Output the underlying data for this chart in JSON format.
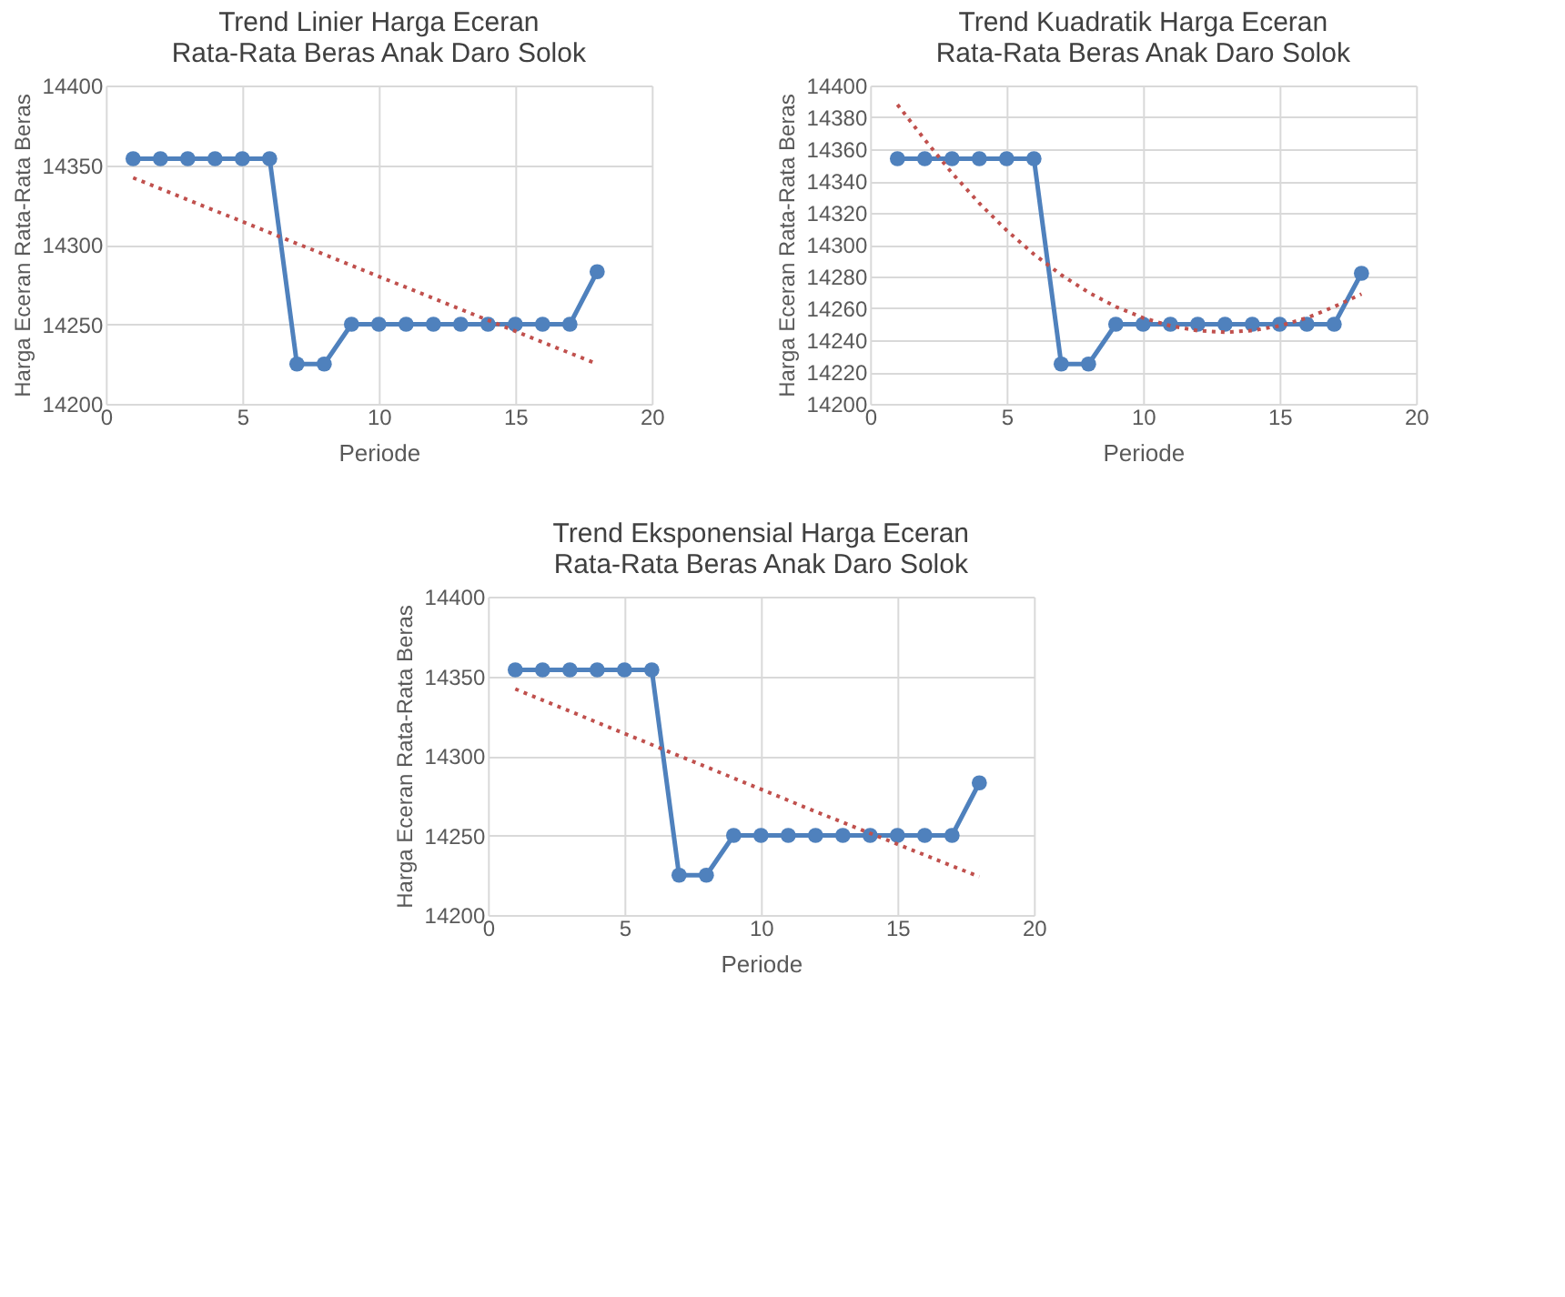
{
  "chart_data": [
    {
      "type": "line",
      "title": [
        "Trend Linier Harga Eceran",
        "Rata-Rata Beras Anak Daro Solok"
      ],
      "xlabel": "Periode",
      "ylabel": "Harga Eceran Rata-Rata Beras",
      "xlim": [
        0,
        20
      ],
      "xticks": [
        0,
        5,
        10,
        15,
        20
      ],
      "ylim": [
        14200,
        14400
      ],
      "yticks": [
        14200,
        14250,
        14300,
        14350,
        14400
      ],
      "grid": true,
      "series": [
        {
          "color": "#4f81bd",
          "marker": "circle",
          "line_style": "solid",
          "x": [
            1,
            2,
            3,
            4,
            5,
            6,
            7,
            8,
            9,
            10,
            11,
            12,
            13,
            14,
            15,
            16,
            17,
            18
          ],
          "values": [
            14354,
            14354,
            14354,
            14354,
            14354,
            14354,
            14225,
            14225,
            14250,
            14250,
            14250,
            14250,
            14250,
            14250,
            14250,
            14250,
            14250,
            14283
          ]
        },
        {
          "color": "#c0504d",
          "marker": "none",
          "line_style": "dotted",
          "x": [
            1,
            18
          ],
          "values": [
            14342,
            14225
          ]
        }
      ]
    },
    {
      "type": "line",
      "title": [
        "Trend Kuadratik Harga Eceran",
        "Rata-Rata Beras Anak Daro Solok"
      ],
      "xlabel": "Periode",
      "ylabel": "Harga Eceran Rata-Rata Beras",
      "xlim": [
        0,
        20
      ],
      "xticks": [
        0,
        5,
        10,
        15,
        20
      ],
      "ylim": [
        14200,
        14400
      ],
      "yticks": [
        14200,
        14220,
        14240,
        14260,
        14280,
        14300,
        14320,
        14340,
        14360,
        14380,
        14400
      ],
      "grid": true,
      "series": [
        {
          "color": "#4f81bd",
          "marker": "circle",
          "line_style": "solid",
          "x": [
            1,
            2,
            3,
            4,
            5,
            6,
            7,
            8,
            9,
            10,
            11,
            12,
            13,
            14,
            15,
            16,
            17,
            18
          ],
          "values": [
            14354,
            14354,
            14354,
            14354,
            14354,
            14354,
            14225,
            14225,
            14250,
            14250,
            14250,
            14250,
            14250,
            14250,
            14250,
            14250,
            14250,
            14282
          ]
        },
        {
          "color": "#c0504d",
          "marker": "none",
          "line_style": "dotted",
          "x": [
            1,
            2,
            3,
            4,
            5,
            6,
            7,
            8,
            9,
            10,
            11,
            12,
            13,
            14,
            15,
            16,
            17,
            18
          ],
          "values": [
            14388,
            14366,
            14345,
            14326,
            14309,
            14294,
            14281,
            14270,
            14261,
            14254,
            14249,
            14246,
            14245,
            14246,
            14249,
            14254,
            14261,
            14269
          ]
        }
      ]
    },
    {
      "type": "line",
      "title": [
        "Trend Eksponensial Harga Eceran",
        "Rata-Rata Beras Anak Daro Solok"
      ],
      "xlabel": "Periode",
      "ylabel": "Harga Eceran Rata-Rata Beras",
      "xlim": [
        0,
        20
      ],
      "xticks": [
        0,
        5,
        10,
        15,
        20
      ],
      "ylim": [
        14200,
        14400
      ],
      "yticks": [
        14200,
        14250,
        14300,
        14350,
        14400
      ],
      "grid": true,
      "series": [
        {
          "color": "#4f81bd",
          "marker": "circle",
          "line_style": "solid",
          "x": [
            1,
            2,
            3,
            4,
            5,
            6,
            7,
            8,
            9,
            10,
            11,
            12,
            13,
            14,
            15,
            16,
            17,
            18
          ],
          "values": [
            14354,
            14354,
            14354,
            14354,
            14354,
            14354,
            14225,
            14225,
            14250,
            14250,
            14250,
            14250,
            14250,
            14250,
            14250,
            14250,
            14250,
            14283
          ]
        },
        {
          "color": "#c0504d",
          "marker": "none",
          "line_style": "dotted",
          "x": [
            1,
            6,
            12,
            18
          ],
          "values": [
            14342,
            14307,
            14265,
            14224
          ]
        }
      ]
    }
  ]
}
